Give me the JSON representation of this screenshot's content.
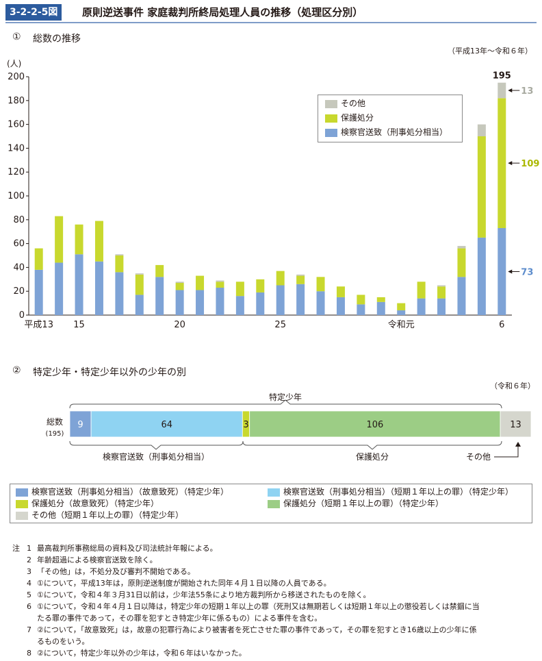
{
  "header": {
    "figure_number": "3-2-2-5図",
    "title": "原則逆送事件 家庭裁判所終局処理人員の推移（処理区分別）"
  },
  "section1": {
    "marker": "①",
    "title": "総数の推移",
    "period": "（平成13年～令和６年）"
  },
  "chart_data": [
    {
      "type": "bar",
      "stacked": true,
      "title": "総数の推移",
      "ylabel": "(人)",
      "ylim": [
        0,
        200
      ],
      "yticks": [
        0,
        20,
        40,
        60,
        80,
        100,
        120,
        140,
        160,
        180,
        200
      ],
      "categories": [
        "平成13",
        "14",
        "15",
        "16",
        "17",
        "18",
        "19",
        "20",
        "21",
        "22",
        "23",
        "24",
        "25",
        "26",
        "27",
        "28",
        "29",
        "30",
        "令和元",
        "2",
        "3",
        "4",
        "5",
        "6"
      ],
      "xtick_labels": {
        "0": "平成13",
        "2": "15",
        "7": "20",
        "12": "25",
        "18": "令和元",
        "23": "6"
      },
      "series": [
        {
          "name": "検察官送致（刑事処分相当）",
          "color": "#7ea3d6",
          "values": [
            38,
            44,
            51,
            45,
            36,
            17,
            32,
            21,
            21,
            23,
            16,
            19,
            25,
            26,
            20,
            15,
            9,
            11,
            4,
            14,
            14,
            32,
            65,
            73
          ]
        },
        {
          "name": "保護処分",
          "color": "#c8d82e",
          "values": [
            18,
            39,
            25,
            34,
            14,
            17,
            10,
            6,
            12,
            5,
            12,
            11,
            12,
            7,
            12,
            9,
            8,
            4,
            6,
            14,
            10,
            24,
            85,
            109
          ]
        },
        {
          "name": "その他",
          "color": "#c6c8bc",
          "values": [
            0,
            0,
            0,
            0,
            1,
            1,
            0,
            1,
            0,
            1,
            0,
            0,
            0,
            1,
            0,
            0,
            0,
            0,
            0,
            0,
            1,
            2,
            10,
            13
          ]
        }
      ],
      "annotations": {
        "total_last": "195",
        "other_last": "13",
        "protective_last": "109",
        "prosecutor_last": "73"
      },
      "legend_position": "top-right"
    },
    {
      "type": "bar",
      "orientation": "horizontal",
      "stacked": true,
      "title": "特定少年・特定少年以外の少年の別",
      "category": "総数",
      "total": 195,
      "segments": [
        {
          "name": "検察官送致（刑事処分相当）（故意致死）（特定少年）",
          "value": 9,
          "color": "#7ea3d6"
        },
        {
          "name": "検察官送致（刑事処分相当）（短期１年以上の罪）（特定少年）",
          "value": 64,
          "color": "#8fd3f2"
        },
        {
          "name": "保護処分（故意致死）（特定少年）",
          "value": 3,
          "color": "#c8d82e"
        },
        {
          "name": "保護処分（短期１年以上の罪）（特定少年）",
          "value": 106,
          "color": "#9ccd85"
        },
        {
          "name": "その他（短期１年以上の罪）（特定少年）",
          "value": 13,
          "color": "#d5d6cd"
        }
      ]
    }
  ],
  "section2": {
    "marker": "②",
    "title": "特定少年・特定少年以外の少年の別",
    "period": "（令和６年）",
    "row_label": "総数",
    "row_total": "(195)",
    "bracket_top": "特定少年",
    "bracket_bottom_left": "検察官送致（刑事処分相当）",
    "bracket_bottom_right": "保護処分",
    "other_label": "その他"
  },
  "legend1": {
    "other": "その他",
    "protective": "保護処分",
    "prosecutor": "検察官送致（刑事処分相当）"
  },
  "legend2": [
    {
      "label": "検察官送致（刑事処分相当）（故意致死）（特定少年）",
      "color": "#7ea3d6"
    },
    {
      "label": "検察官送致（刑事処分相当）（短期１年以上の罪）（特定少年）",
      "color": "#8fd3f2"
    },
    {
      "label": "保護処分（故意致死）（特定少年）",
      "color": "#c8d82e"
    },
    {
      "label": "保護処分（短期１年以上の罪）（特定少年）",
      "color": "#9ccd85"
    },
    {
      "label": "その他（短期１年以上の罪）（特定少年）",
      "color": "#d5d6cd"
    }
  ],
  "notes": {
    "prefix": "注",
    "items": [
      {
        "num": "1",
        "text": "最高裁判所事務総局の資料及び司法統計年報による。"
      },
      {
        "num": "2",
        "text": "年齢超過による検察官送致を除く。"
      },
      {
        "num": "3",
        "text": "「その他」は，不処分及び審判不開始である。"
      },
      {
        "num": "4",
        "text": "①について，平成13年は，原則逆送制度が開始された同年４月１日以降の人員である。"
      },
      {
        "num": "5",
        "text": "①について，令和４年３月31日以前は，少年法55条により地方裁判所から移送されたものを除く。"
      },
      {
        "num": "6",
        "text": "①について，令和４年４月１日以降は，特定少年の短期１年以上の罪（死刑又は無期若しくは短期１年以上の懲役若しくは禁錮に当"
      },
      {
        "num": "",
        "text": "たる罪の事件であって，その罪を犯すとき特定少年に係るもの）による事件を含む。"
      },
      {
        "num": "7",
        "text": "②について，「故意致死」は，故意の犯罪行為により被害者を死亡させた罪の事件であって，その罪を犯すとき16歳以上の少年に係"
      },
      {
        "num": "",
        "text": "るものをいう。"
      },
      {
        "num": "8",
        "text": "②について，特定少年以外の少年は，令和６年はいなかった。"
      }
    ]
  }
}
